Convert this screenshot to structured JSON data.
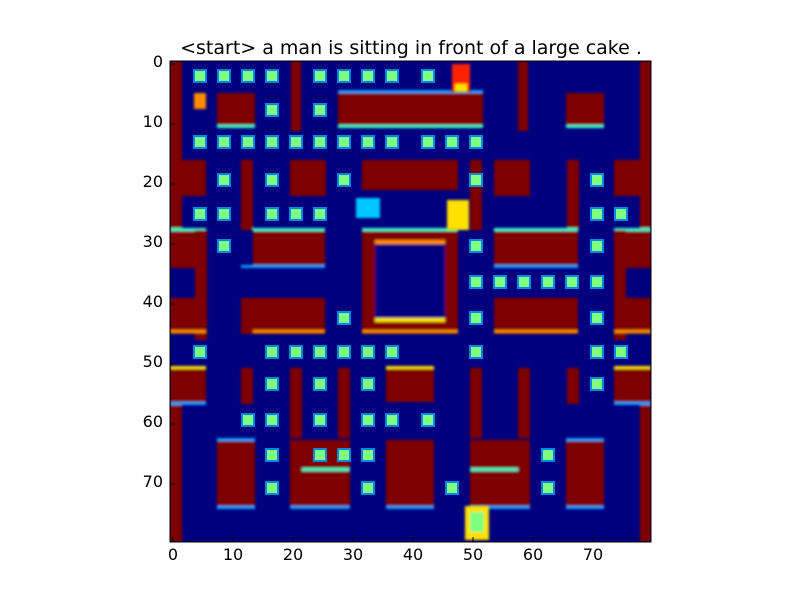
{
  "figure": {
    "title": "<start> a man is sitting in front of a large cake ."
  },
  "axes": {
    "y_ticks": [
      "0",
      "10",
      "20",
      "30",
      "40",
      "50",
      "60",
      "70"
    ],
    "x_ticks": [
      "0",
      "10",
      "20",
      "30",
      "40",
      "50",
      "60",
      "70"
    ]
  },
  "heatmap": {
    "colormap": "jet",
    "grid_size": 80,
    "colors": {
      "background": "#00007f",
      "wall": "#7f0000",
      "edge": "#33ffcc",
      "pellet": "#7fff7f",
      "pellet_halo": "#00a0ff",
      "sprite_red": "#ff2000",
      "sprite_yellow": "#ffe000",
      "sprite_cyan": "#00c8ff"
    }
  }
}
